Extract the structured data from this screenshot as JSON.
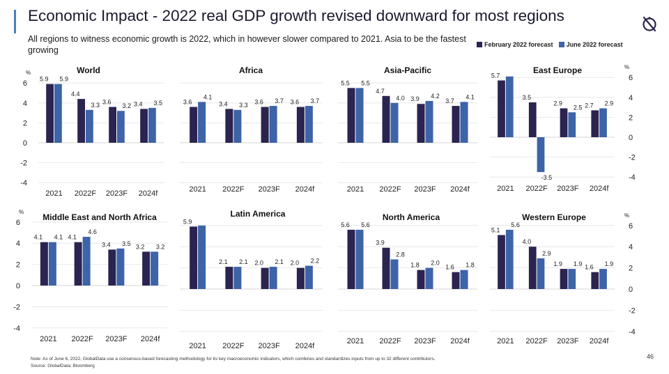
{
  "header": {
    "title": "Economic Impact - 2022 real GDP growth revised downward for most regions",
    "subtitle": "All regions to witness economic growth is 2022, which in however slower compared to 2021. Asia to be the fastest growing"
  },
  "legend": {
    "items": [
      {
        "label": "February 2022 forecast",
        "color": "#2b2350"
      },
      {
        "label": "June 2022 forecast",
        "color": "#3d63a8"
      }
    ]
  },
  "footer": {
    "note": "Note: As of June 6, 2022, GlobalData use a consensus-based forecasting methodology for its key macroeconomic indicators, which combines and standardizes inputs from up to 32 different contributors.",
    "source": "Source: GlobalData; Bloomberg",
    "page_number": "46"
  },
  "chart_data": [
    {
      "type": "bar",
      "title": "World",
      "categories": [
        "2021",
        "2022F",
        "2023F",
        "2024f"
      ],
      "series": [
        {
          "name": "February 2022 forecast",
          "values": [
            5.9,
            4.4,
            3.6,
            3.4
          ]
        },
        {
          "name": "June 2022 forecast",
          "values": [
            5.9,
            3.3,
            3.2,
            3.5
          ]
        }
      ],
      "data_labels": [
        [
          "5.9",
          "5.9"
        ],
        [
          "4.4",
          "3.3"
        ],
        [
          "3.6",
          "3.2"
        ],
        [
          "3.4",
          "3.5"
        ]
      ],
      "ylim": [
        -4,
        6
      ],
      "yticks": [
        "6",
        "4",
        "2",
        "0",
        "-2",
        "-4"
      ],
      "unit": "%",
      "axis_side": "left"
    },
    {
      "type": "bar",
      "title": "Africa",
      "categories": [
        "2021",
        "2022F",
        "2023F",
        "2024f"
      ],
      "series": [
        {
          "name": "February 2022 forecast",
          "values": [
            3.6,
            3.4,
            3.6,
            3.6
          ]
        },
        {
          "name": "June 2022 forecast",
          "values": [
            4.1,
            3.3,
            3.7,
            3.7
          ]
        }
      ],
      "data_labels": [
        [
          "3.6",
          "4.1"
        ],
        [
          "3.4",
          "3.3"
        ],
        [
          "3.6",
          "3.7"
        ],
        [
          "3.6",
          "3.7"
        ]
      ],
      "ylim": [
        -4,
        6
      ],
      "yticks": [],
      "unit": "",
      "axis_side": "none"
    },
    {
      "type": "bar",
      "title": "Asia-Pacific",
      "categories": [
        "2021",
        "2022F",
        "2023F",
        "2024f"
      ],
      "series": [
        {
          "name": "February 2022 forecast",
          "values": [
            5.5,
            4.7,
            3.9,
            3.7
          ]
        },
        {
          "name": "June 2022 forecast",
          "values": [
            5.5,
            4.0,
            4.2,
            4.1
          ]
        }
      ],
      "data_labels": [
        [
          "5.5",
          "5.5"
        ],
        [
          "4.7",
          "4.0"
        ],
        [
          "3.9",
          "4.2"
        ],
        [
          "3.7",
          "4.1"
        ]
      ],
      "ylim": [
        -4,
        6
      ],
      "yticks": [],
      "unit": "",
      "axis_side": "none"
    },
    {
      "type": "bar",
      "title": "East Europe",
      "categories": [
        "2021",
        "2022F",
        "2023F",
        "2024f"
      ],
      "series": [
        {
          "name": "February 2022 forecast",
          "values": [
            5.7,
            3.5,
            2.9,
            2.7
          ]
        },
        {
          "name": "June 2022 forecast",
          "values": [
            6.1,
            -3.5,
            2.5,
            2.9
          ]
        }
      ],
      "data_labels": [
        [
          "5.7",
          ""
        ],
        [
          "3.5",
          "-3.5"
        ],
        [
          "2.9",
          "2.5"
        ],
        [
          "2.7",
          "2.9"
        ]
      ],
      "ylim": [
        -4,
        6
      ],
      "yticks": [
        "6",
        "4",
        "2",
        "0",
        "-2",
        "-4"
      ],
      "unit": "%",
      "axis_side": "right"
    },
    {
      "type": "bar",
      "title": "Middle East and North Africa",
      "categories": [
        "2021",
        "2022F",
        "2023F",
        "2024f"
      ],
      "series": [
        {
          "name": "February 2022 forecast",
          "values": [
            4.1,
            4.1,
            3.4,
            3.2
          ]
        },
        {
          "name": "June 2022 forecast",
          "values": [
            4.1,
            4.6,
            3.5,
            3.2
          ]
        }
      ],
      "data_labels": [
        [
          "4.1",
          "4.1"
        ],
        [
          "4.1",
          "4.6"
        ],
        [
          "3.4",
          "3.5"
        ],
        [
          "3.2",
          "3.2"
        ]
      ],
      "ylim": [
        -4,
        6
      ],
      "yticks": [
        "6",
        "4",
        "2",
        "0",
        "-2",
        "-4"
      ],
      "unit": "%",
      "axis_side": "left"
    },
    {
      "type": "bar",
      "title": "Latin America",
      "categories": [
        "2021",
        "2022F",
        "2023F",
        "2024f"
      ],
      "series": [
        {
          "name": "February 2022 forecast",
          "values": [
            5.9,
            2.1,
            2.0,
            2.0
          ]
        },
        {
          "name": "June 2022 forecast",
          "values": [
            6.0,
            2.1,
            2.1,
            2.2
          ]
        }
      ],
      "data_labels": [
        [
          "5.9",
          ""
        ],
        [
          "2.1",
          "2.1"
        ],
        [
          "2.0",
          "2.1"
        ],
        [
          "2.0",
          "2.2"
        ]
      ],
      "ylim": [
        -4,
        6
      ],
      "yticks": [],
      "unit": "",
      "axis_side": "none"
    },
    {
      "type": "bar",
      "title": "North America",
      "categories": [
        "2021",
        "2022F",
        "2023F",
        "2024f"
      ],
      "series": [
        {
          "name": "February 2022 forecast",
          "values": [
            5.6,
            3.9,
            1.8,
            1.6
          ]
        },
        {
          "name": "June 2022 forecast",
          "values": [
            5.6,
            2.8,
            2.0,
            1.8
          ]
        }
      ],
      "data_labels": [
        [
          "5.6",
          "5.6"
        ],
        [
          "3.9",
          "2.8"
        ],
        [
          "1.8",
          "2.0"
        ],
        [
          "1.6",
          "1.8"
        ]
      ],
      "ylim": [
        -4,
        6
      ],
      "yticks": [],
      "unit": "",
      "axis_side": "none"
    },
    {
      "type": "bar",
      "title": "Western Europe",
      "categories": [
        "2021",
        "2022F",
        "2023F",
        "2024f"
      ],
      "series": [
        {
          "name": "February 2022 forecast",
          "values": [
            5.1,
            4.0,
            1.9,
            1.6
          ]
        },
        {
          "name": "June 2022 forecast",
          "values": [
            5.6,
            2.9,
            1.9,
            1.9
          ]
        }
      ],
      "data_labels": [
        [
          "5.1",
          "5.6"
        ],
        [
          "4.0",
          "2.9"
        ],
        [
          "1.9",
          "1.9"
        ],
        [
          "1.6",
          "1.9"
        ]
      ],
      "ylim": [
        -4,
        6
      ],
      "yticks": [
        "6",
        "4",
        "2",
        "0",
        "-2",
        "-4"
      ],
      "unit": "%",
      "axis_side": "right"
    }
  ]
}
